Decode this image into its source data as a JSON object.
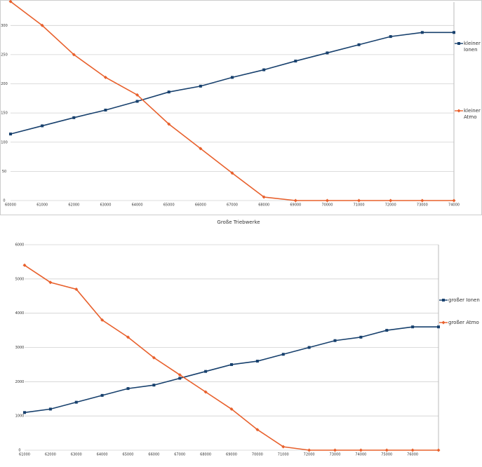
{
  "chart_data": [
    {
      "type": "line",
      "categories": [
        "60000",
        "61000",
        "62000",
        "63000",
        "64000",
        "65000",
        "66000",
        "67000",
        "68000",
        "69000",
        "70000",
        "71000",
        "72000",
        "73000",
        "74000"
      ],
      "series": [
        {
          "name": "kleiner Ionen",
          "color": "#17406d",
          "values": [
            114,
            128,
            142,
            155,
            170,
            186,
            196,
            211,
            224,
            239,
            253,
            267,
            281,
            288,
            288
          ]
        },
        {
          "name": "kleiner Atmo",
          "color": "#e8602c",
          "values": [
            341,
            300,
            250,
            211,
            181,
            131,
            89,
            47,
            6,
            0,
            0,
            0,
            0,
            0,
            0
          ]
        }
      ],
      "ylim": [
        0,
        340
      ],
      "yticks": [
        0,
        50,
        100,
        150,
        200,
        250,
        300
      ],
      "grid": true
    },
    {
      "type": "line",
      "title": "Große Triebwerke",
      "categories": [
        "61000",
        "62000",
        "63000",
        "64000",
        "65000",
        "66000",
        "67000",
        "68000",
        "69000",
        "70000",
        "71000",
        "72000",
        "73000",
        "74000",
        "75000",
        "76000",
        null
      ],
      "series": [
        {
          "name": "großer Ionen",
          "color": "#17406d",
          "values": [
            1100,
            1200,
            1400,
            1600,
            1800,
            1900,
            2100,
            2300,
            2500,
            2600,
            2800,
            3000,
            3200,
            3300,
            3500,
            3600,
            3600
          ]
        },
        {
          "name": "großer Atmo",
          "color": "#e8602c",
          "values": [
            5400,
            4900,
            4700,
            3800,
            3300,
            2700,
            2200,
            1700,
            1200,
            600,
            100,
            0,
            0,
            0,
            0,
            0,
            0
          ]
        }
      ],
      "ylim": [
        0,
        6000
      ],
      "yticks": [
        0,
        1000,
        2000,
        3000,
        4000,
        5000,
        6000
      ],
      "grid": true
    }
  ]
}
